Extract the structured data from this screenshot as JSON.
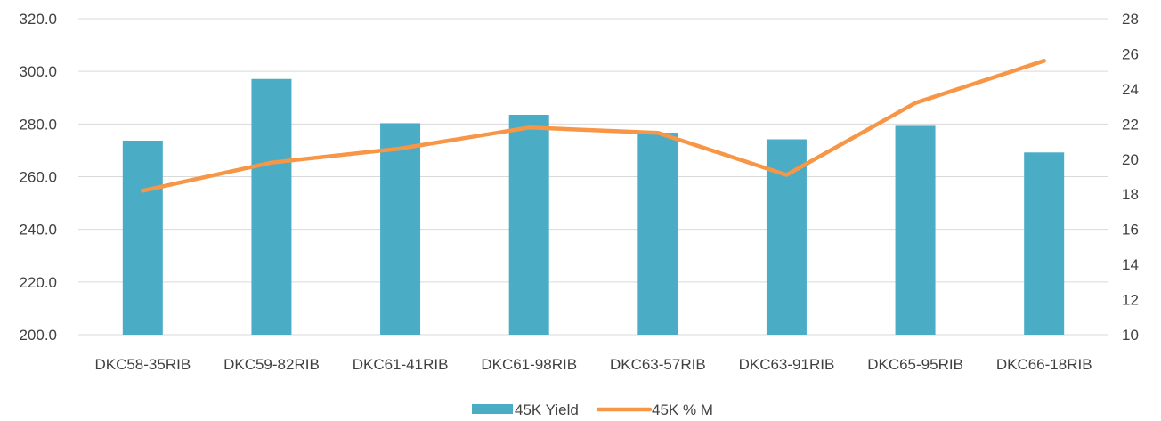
{
  "chart_data": {
    "type": "bar+line",
    "categories": [
      "DKC58-35RIB",
      "DKC59-82RIB",
      "DKC61-41RIB",
      "DKC61-98RIB",
      "DKC63-57RIB",
      "DKC63-91RIB",
      "DKC65-95RIB",
      "DKC66-18RIB"
    ],
    "series": [
      {
        "name": "45K Yield",
        "type": "bar",
        "axis": "left",
        "color": "#4bacc6",
        "values": [
          273.7,
          297.1,
          280.3,
          283.5,
          276.7,
          274.2,
          279.3,
          269.2
        ]
      },
      {
        "name": "45K % M",
        "type": "line",
        "axis": "right",
        "color": "#f79646",
        "values": [
          18.2,
          19.8,
          20.6,
          21.8,
          21.5,
          19.1,
          23.2,
          25.6
        ]
      }
    ],
    "y_left": {
      "min": 200,
      "max": 320,
      "step": 20,
      "tick_labels": [
        "200.0",
        "220.0",
        "240.0",
        "260.0",
        "280.0",
        "300.0",
        "320.0"
      ]
    },
    "y_right": {
      "min": 10,
      "max": 28,
      "step": 2,
      "tick_labels": [
        "10",
        "12",
        "14",
        "16",
        "18",
        "20",
        "22",
        "24",
        "26",
        "28"
      ]
    },
    "grid": true,
    "legend": "bottom"
  }
}
